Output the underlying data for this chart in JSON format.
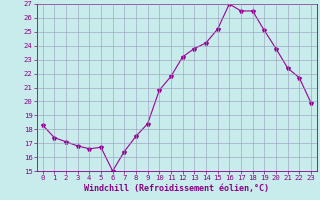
{
  "x": [
    0,
    1,
    2,
    3,
    4,
    5,
    6,
    7,
    8,
    9,
    10,
    11,
    12,
    13,
    14,
    15,
    16,
    17,
    18,
    19,
    20,
    21,
    22,
    23
  ],
  "y": [
    18.3,
    17.4,
    17.1,
    16.8,
    16.6,
    16.7,
    15.0,
    16.4,
    17.5,
    18.4,
    20.8,
    21.8,
    23.2,
    23.8,
    24.2,
    25.2,
    27.0,
    26.5,
    26.5,
    25.1,
    23.8,
    22.4,
    21.7,
    19.9
  ],
  "line_color": "#990099",
  "marker": "*",
  "marker_size": 3,
  "bg_color": "#c8ecec",
  "grid_color": "#9999bb",
  "xlabel": "Windchill (Refroidissement éolien,°C)",
  "ylim": [
    15,
    27
  ],
  "xlim_min": -0.5,
  "xlim_max": 23.5,
  "yticks": [
    15,
    16,
    17,
    18,
    19,
    20,
    21,
    22,
    23,
    24,
    25,
    26,
    27
  ],
  "xticks": [
    0,
    1,
    2,
    3,
    4,
    5,
    6,
    7,
    8,
    9,
    10,
    11,
    12,
    13,
    14,
    15,
    16,
    17,
    18,
    19,
    20,
    21,
    22,
    23
  ],
  "tick_color": "#880088",
  "tick_fontsize": 5.2,
  "xlabel_fontsize": 6.0,
  "line_width": 0.8
}
